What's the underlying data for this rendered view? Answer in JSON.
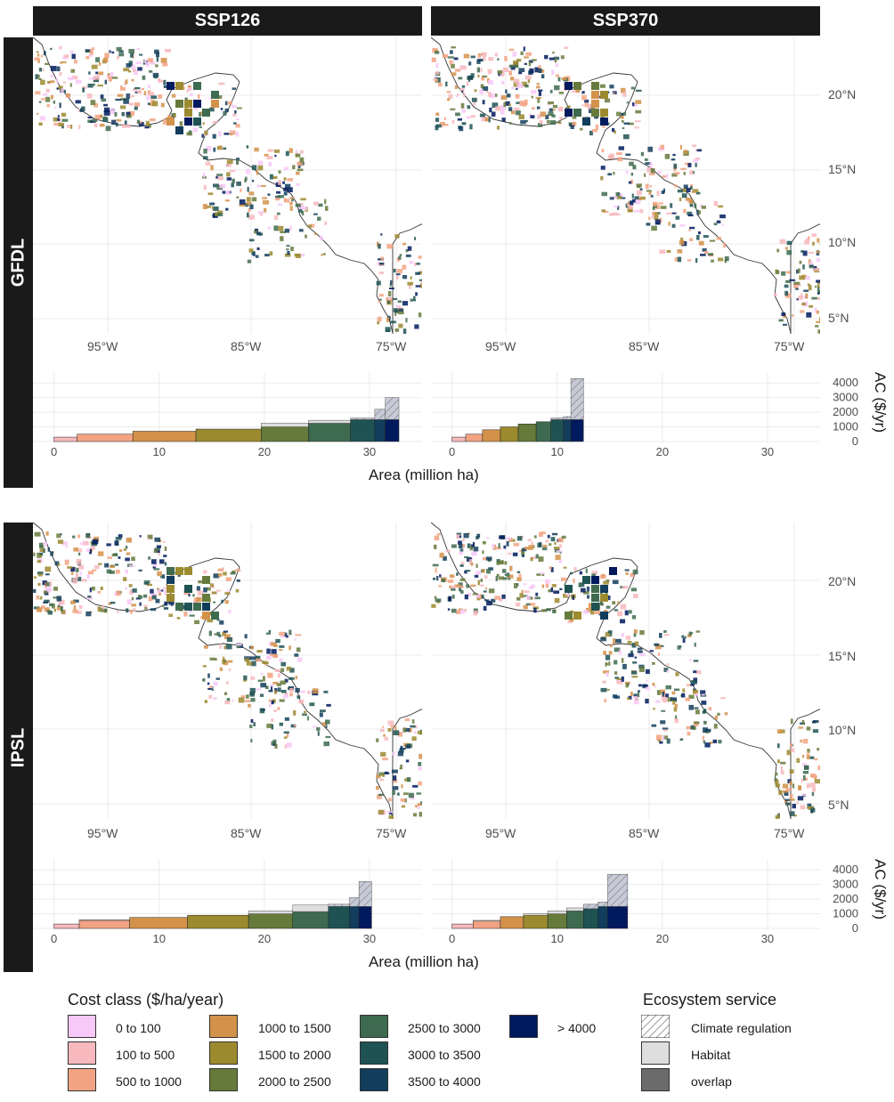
{
  "panels": {
    "columns": [
      "SSP126",
      "SSP370"
    ],
    "rows": [
      "GFDL",
      "IPSL"
    ]
  },
  "map_axes": {
    "lon_labels": [
      "95°W",
      "85°W",
      "75°W"
    ],
    "lat_labels": [
      "20°N",
      "15°N",
      "10°N",
      "5°N"
    ]
  },
  "colors": {
    "cost_classes": [
      "#f8c8f8",
      "#f7b9bd",
      "#f2a383",
      "#d3924a",
      "#9c8a2f",
      "#667a3b",
      "#3e6b4f",
      "#1f5253",
      "#123d5c",
      "#001a5e"
    ],
    "habitat": "#dedede",
    "overlap": "#6b6b6b"
  },
  "chart_data": [
    {
      "type": "bar",
      "panel": "GFDL / SSP126",
      "classes": [
        "0 to 100",
        "100 to 500",
        "500 to 1000",
        "1000 to 1500",
        "1500 to 2000",
        "2000 to 2500",
        "2500 to 3000",
        "3000 to 3500",
        "3500 to 4000",
        "> 4000"
      ],
      "area_widths": [
        0.0,
        2.2,
        5.3,
        6.0,
        6.2,
        4.5,
        4.0,
        2.3,
        1.0,
        1.3
      ],
      "ac_values": [
        0,
        300,
        500,
        700,
        850,
        1000,
        1250,
        1500,
        1500,
        1500
      ],
      "ac_extra": [
        0,
        0,
        0,
        0,
        0,
        250,
        200,
        100,
        700,
        1500
      ],
      "x_ticks": [
        "0",
        "10",
        "20",
        "30"
      ],
      "y_ticks": [
        "0",
        "1000",
        "2000",
        "3000",
        "4000"
      ],
      "xlabel": "Area (million ha)",
      "ylabel": "AC ($/yr)",
      "xlim": [
        -2,
        35
      ],
      "ylim": [
        0,
        4500
      ]
    },
    {
      "type": "bar",
      "panel": "GFDL / SSP370",
      "classes": [
        "0 to 100",
        "100 to 500",
        "500 to 1000",
        "1000 to 1500",
        "1500 to 2000",
        "2000 to 2500",
        "2500 to 3000",
        "3000 to 3500",
        "3500 to 4000",
        "> 4000"
      ],
      "area_widths": [
        0.0,
        1.3,
        1.6,
        1.7,
        1.7,
        1.7,
        1.4,
        1.2,
        0.7,
        1.2
      ],
      "ac_values": [
        0,
        300,
        500,
        800,
        1000,
        1200,
        1350,
        1500,
        1500,
        1500
      ],
      "ac_extra": [
        0,
        0,
        0,
        0,
        0,
        0,
        0,
        100,
        200,
        2800
      ],
      "x_ticks": [
        "0",
        "10",
        "20",
        "30"
      ],
      "y_ticks": [
        "0",
        "1000",
        "2000",
        "3000",
        "4000"
      ],
      "xlabel": "",
      "ylabel": "",
      "xlim": [
        -2,
        35
      ],
      "ylim": [
        0,
        4500
      ]
    },
    {
      "type": "bar",
      "panel": "IPSL / SSP126",
      "classes": [
        "0 to 100",
        "100 to 500",
        "500 to 1000",
        "1000 to 1500",
        "1500 to 2000",
        "2000 to 2500",
        "2500 to 3000",
        "3000 to 3500",
        "3500 to 4000",
        "> 4000"
      ],
      "area_widths": [
        0.0,
        2.4,
        4.8,
        5.5,
        5.8,
        4.2,
        3.4,
        2.0,
        0.9,
        1.2
      ],
      "ac_values": [
        0,
        300,
        550,
        750,
        900,
        1000,
        1150,
        1500,
        1500,
        1500
      ],
      "ac_extra": [
        0,
        0,
        50,
        0,
        0,
        200,
        450,
        150,
        600,
        1700
      ],
      "x_ticks": [
        "0",
        "10",
        "20",
        "30"
      ],
      "y_ticks": [
        "0",
        "1000",
        "2000",
        "3000",
        "4000"
      ],
      "xlabel": "Area (million ha)",
      "ylabel": "AC ($/yr)",
      "xlim": [
        -2,
        35
      ],
      "ylim": [
        0,
        4500
      ]
    },
    {
      "type": "bar",
      "panel": "IPSL / SSP370",
      "classes": [
        "0 to 100",
        "100 to 500",
        "500 to 1000",
        "1000 to 1500",
        "1500 to 2000",
        "2000 to 2500",
        "2500 to 3000",
        "3000 to 3500",
        "3500 to 4000",
        "> 4000"
      ],
      "area_widths": [
        0.0,
        2.0,
        2.6,
        2.2,
        2.3,
        1.8,
        1.6,
        1.4,
        0.9,
        1.9
      ],
      "ac_values": [
        0,
        300,
        500,
        800,
        900,
        1000,
        1200,
        1350,
        1500,
        1500
      ],
      "ac_extra": [
        0,
        0,
        50,
        0,
        100,
        200,
        200,
        300,
        300,
        2200
      ],
      "x_ticks": [
        "0",
        "10",
        "20",
        "30"
      ],
      "y_ticks": [
        "0",
        "1000",
        "2000",
        "3000",
        "4000"
      ],
      "xlabel": "",
      "ylabel": "",
      "xlim": [
        -2,
        35
      ],
      "ylim": [
        0,
        4500
      ]
    }
  ],
  "legend": {
    "cost_title": "Cost class ($/ha/year)",
    "cost_items": [
      "0 to 100",
      "100 to 500",
      "500 to 1000",
      "1000 to 1500",
      "1500 to 2000",
      "2000 to 2500",
      "2500 to 3000",
      "3000 to 3500",
      "3500 to 4000",
      "> 4000"
    ],
    "eco_title": "Ecosystem service",
    "eco_items": [
      "Climate regulation",
      "Habitat",
      "overlap"
    ]
  }
}
